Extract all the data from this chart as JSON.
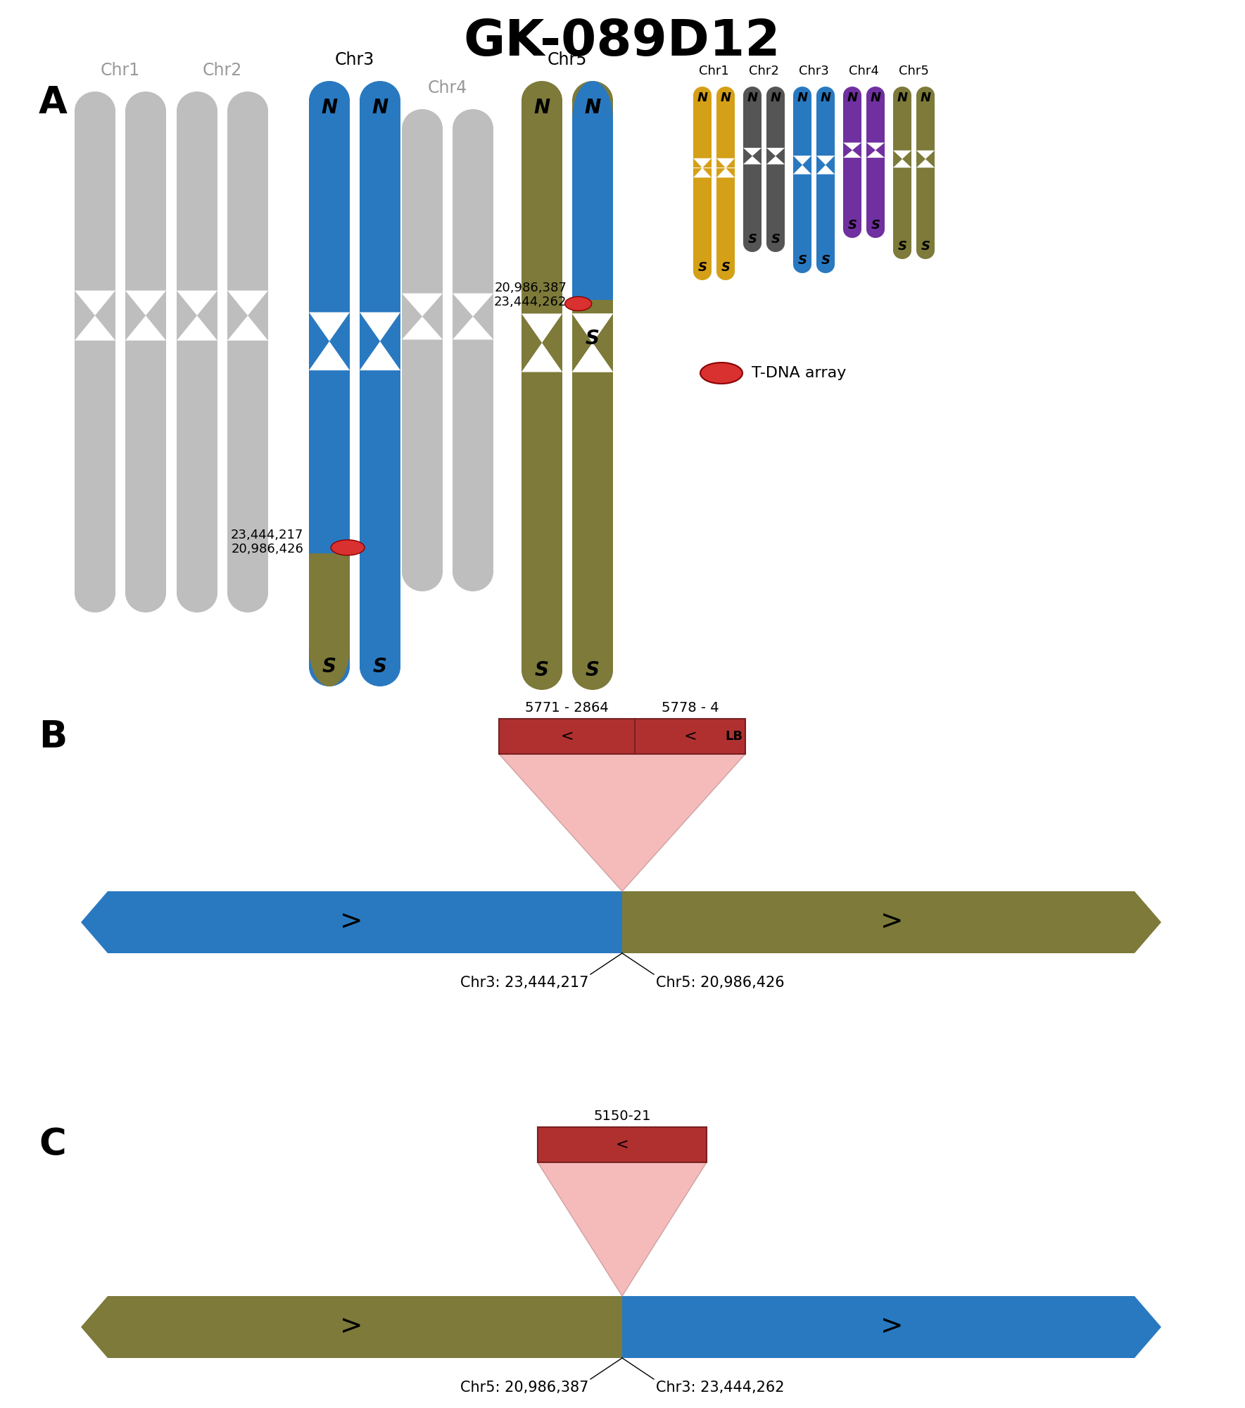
{
  "title": "GK-089D12",
  "title_fontsize": 52,
  "panel_label_fontsize": 38,
  "colors": {
    "blue": "#2979C1",
    "olive": "#7D7A3A",
    "gray": "#BEBEBE",
    "red_dark": "#B03030",
    "pink_light": "#F5BBBB",
    "red_oval": "#D93030",
    "white": "#FFFFFF",
    "black": "#000000",
    "gold": "#D4A017",
    "dark_gray": "#555555",
    "purple": "#7030A0"
  },
  "legend_data": [
    {
      "label": "Chr1",
      "color": "#D4A017"
    },
    {
      "label": "Chr2",
      "color": "#555555"
    },
    {
      "label": "Chr3",
      "color": "#2979C1"
    },
    {
      "label": "Chr4",
      "color": "#7030A0"
    },
    {
      "label": "Chr5",
      "color": "#7D7A3A"
    }
  ],
  "panel_B": {
    "label_left": "5771 - 2864",
    "label_right": "5778 - 4",
    "lb_text": "LB",
    "chr_left_label": "Chr3: 23,444,217",
    "chr_right_label": "Chr5: 20,986,426",
    "chr_left_color": "#2979C1",
    "chr_right_color": "#7D7A3A"
  },
  "panel_C": {
    "label": "5150-21",
    "chr_left_label": "Chr5: 20,986,387",
    "chr_right_label": "Chr3: 23,444,262",
    "chr_left_color": "#7D7A3A",
    "chr_right_color": "#2979C1"
  }
}
